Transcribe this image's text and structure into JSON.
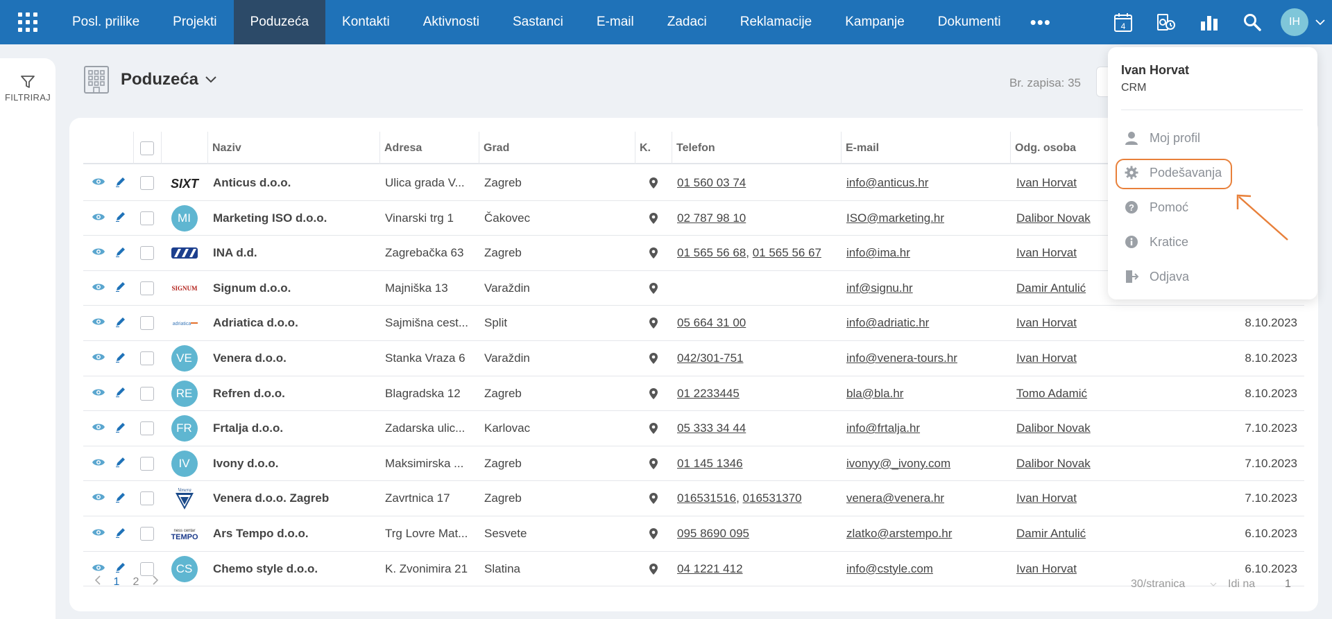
{
  "nav": {
    "items": [
      {
        "label": "Posl. prilike"
      },
      {
        "label": "Projekti"
      },
      {
        "label": "Poduzeća"
      },
      {
        "label": "Kontakti"
      },
      {
        "label": "Aktivnosti"
      },
      {
        "label": "Sastanci"
      },
      {
        "label": "E-mail"
      },
      {
        "label": "Zadaci"
      },
      {
        "label": "Reklamacije"
      },
      {
        "label": "Kampanje"
      },
      {
        "label": "Dokumenti"
      }
    ],
    "more": "•••",
    "calendar_day": "4",
    "user_initials": "IH",
    "active_tab": "Poduzeća"
  },
  "sidebar": {
    "filter_label": "FILTRIRAJ"
  },
  "page": {
    "title": "Poduzeća",
    "record_count": "Br. zapisa: 35"
  },
  "table": {
    "headers": [
      "Naziv",
      "Adresa",
      "Grad",
      "K.",
      "Telefon",
      "E-mail",
      "Odg. osoba"
    ],
    "rows": [
      {
        "logo": "image",
        "name": "Anticus d.o.o.",
        "address": "Ulica grada V...",
        "city": "Zagreb",
        "phone": "01 560 03 74",
        "phone2": "",
        "email": "info@anticus.hr",
        "person": "Ivan Horvat",
        "date": ""
      },
      {
        "logo": "MI",
        "name": "Marketing ISO d.o.o.",
        "address": "Vinarski trg 1",
        "city": "Čakovec",
        "phone": "02 787 98 10",
        "phone2": "",
        "email": "ISO@marketing.hr",
        "person": "Dalibor Novak",
        "date": ""
      },
      {
        "logo": "image",
        "name": "INA d.d.",
        "address": "Zagrebačka 63",
        "city": "Zagreb",
        "phone": "01 565 56 68",
        "phone2": "01 565 56 67",
        "email": "info@ima.hr",
        "person": "Ivan Horvat",
        "date": ""
      },
      {
        "logo": "image",
        "name": "Signum d.o.o.",
        "address": "Majniška 13",
        "city": "Varaždin",
        "phone": "",
        "phone2": "",
        "email": "inf@signu.hr",
        "person": "Damir Antulić",
        "date": ""
      },
      {
        "logo": "image",
        "name": "Adriatica d.o.o.",
        "address": "Sajmišna cest...",
        "city": "Split",
        "phone": "05 664 31 00",
        "phone2": "",
        "email": "info@adriatic.hr",
        "person": "Ivan Horvat",
        "date": "8.10.2023"
      },
      {
        "logo": "VE",
        "name": "Venera d.o.o.",
        "address": "Stanka Vraza 6",
        "city": "Varaždin",
        "phone": "042/301-751",
        "phone2": "",
        "email": "info@venera-tours.hr",
        "person": "Ivan Horvat",
        "date": "8.10.2023"
      },
      {
        "logo": "RE",
        "name": "Refren d.o.o.",
        "address": "Blagradska 12",
        "city": "Zagreb",
        "phone": "01 2233445",
        "phone2": "",
        "email": "bla@bla.hr",
        "person": "Tomo Adamić",
        "date": "8.10.2023"
      },
      {
        "logo": "FR",
        "name": "Frtalja d.o.o.",
        "address": "Zadarska ulic...",
        "city": "Karlovac",
        "phone": "05 333 34 44",
        "phone2": "",
        "email": "info@frtalja.hr",
        "person": "Dalibor Novak",
        "date": "7.10.2023"
      },
      {
        "logo": "IV",
        "name": "Ivony d.o.o.",
        "address": "Maksimirska ...",
        "city": "Zagreb",
        "phone": "01 145 1346",
        "phone2": "",
        "email": "ivonyy@_ivony.com",
        "person": "Dalibor Novak",
        "date": "7.10.2023"
      },
      {
        "logo": "image",
        "name": "Venera d.o.o. Zagreb",
        "address": "Zavrtnica 17",
        "city": "Zagreb",
        "phone": "016531516",
        "phone2": "016531370",
        "email": "venera@venera.hr",
        "person": "Ivan Horvat",
        "date": "7.10.2023"
      },
      {
        "logo": "image",
        "name": "Ars Tempo d.o.o.",
        "address": "Trg Lovre Mat...",
        "city": "Sesvete",
        "phone": "095 8690 095",
        "phone2": "",
        "email": "zlatko@arstempo.hr",
        "person": "Damir Antulić",
        "date": "6.10.2023"
      },
      {
        "logo": "CS",
        "name": "Chemo style d.o.o.",
        "address": "K. Zvonimira 21",
        "city": "Slatina",
        "phone": "04 1221 412",
        "phone2": "",
        "email": "info@cstyle.com",
        "person": "Ivan Horvat",
        "date": "6.10.2023"
      }
    ]
  },
  "footer": {
    "pages": [
      "1",
      "2"
    ],
    "current_page": "1",
    "per_page": "30/stranica",
    "goto_label": "Idi na",
    "goto_value": "1"
  },
  "user_menu": {
    "name": "Ivan Horvat",
    "subtitle": "CRM",
    "items": [
      {
        "label": "Moj profil",
        "icon": "user-icon"
      },
      {
        "label": "Podešavanja",
        "icon": "gear-icon"
      },
      {
        "label": "Pomoć",
        "icon": "help-icon"
      },
      {
        "label": "Kratice",
        "icon": "info-icon"
      },
      {
        "label": "Odjava",
        "icon": "logout-icon"
      }
    ],
    "highlighted_item": "Podešavanja"
  },
  "colors": {
    "nav_bg": "#1f72b8",
    "nav_active": "#2c4a68",
    "avatar_bg": "#5fb6d1",
    "highlight": "#e8803a"
  }
}
